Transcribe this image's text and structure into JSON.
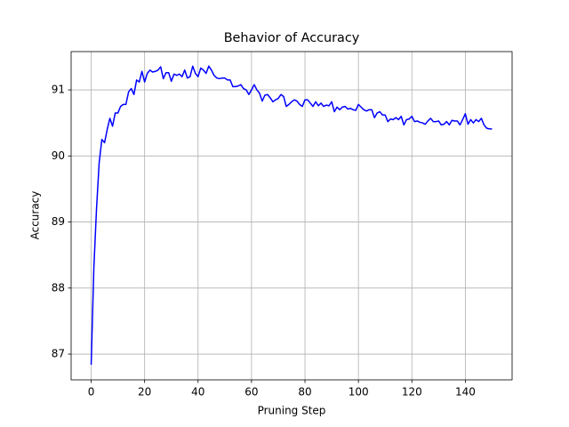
{
  "chart_data": {
    "type": "line",
    "title": "Behavior of Accuracy",
    "x_label": "Pruning Step",
    "y_label": "Accuracy",
    "color": "#0000ff",
    "grid": true,
    "xlim": [
      -7.5,
      157.5
    ],
    "ylim": [
      86.61,
      91.58
    ],
    "xticks": [
      0,
      20,
      40,
      60,
      80,
      100,
      120,
      140
    ],
    "yticks": [
      87,
      88,
      89,
      90,
      91
    ],
    "x": [
      0,
      1,
      2,
      3,
      4,
      5,
      6,
      7,
      8,
      9,
      10,
      11,
      12,
      13,
      14,
      15,
      16,
      17,
      18,
      19,
      20,
      21,
      22,
      23,
      24,
      25,
      26,
      27,
      28,
      29,
      30,
      31,
      32,
      33,
      34,
      35,
      36,
      37,
      38,
      39,
      40,
      41,
      42,
      43,
      44,
      45,
      46,
      47,
      48,
      49,
      50,
      51,
      52,
      53,
      54,
      55,
      56,
      57,
      58,
      59,
      60,
      61,
      62,
      63,
      64,
      65,
      66,
      67,
      68,
      69,
      70,
      71,
      72,
      73,
      74,
      75,
      76,
      77,
      78,
      79,
      80,
      81,
      82,
      83,
      84,
      85,
      86,
      87,
      88,
      89,
      90,
      91,
      92,
      93,
      94,
      95,
      96,
      97,
      98,
      99,
      100,
      101,
      102,
      103,
      104,
      105,
      106,
      107,
      108,
      109,
      110,
      111,
      112,
      113,
      114,
      115,
      116,
      117,
      118,
      119,
      120,
      121,
      122,
      123,
      124,
      125,
      126,
      127,
      128,
      129,
      130,
      131,
      132,
      133,
      134,
      135,
      136,
      137,
      138,
      139,
      140,
      141,
      142,
      143,
      144,
      145,
      146,
      147,
      148,
      149,
      150
    ],
    "values": [
      86.84,
      88.3,
      89.2,
      89.9,
      90.25,
      90.2,
      90.4,
      90.57,
      90.45,
      90.65,
      90.65,
      90.75,
      90.78,
      90.78,
      90.97,
      91.02,
      90.93,
      91.15,
      91.12,
      91.28,
      91.12,
      91.25,
      91.3,
      91.27,
      91.28,
      91.3,
      91.35,
      91.17,
      91.26,
      91.26,
      91.13,
      91.24,
      91.22,
      91.24,
      91.2,
      91.3,
      91.18,
      91.2,
      91.36,
      91.25,
      91.2,
      91.33,
      91.3,
      91.25,
      91.36,
      91.3,
      91.22,
      91.18,
      91.17,
      91.18,
      91.18,
      91.15,
      91.15,
      91.05,
      91.05,
      91.06,
      91.08,
      91.02,
      91.0,
      90.93,
      91.0,
      91.08,
      91.0,
      90.95,
      90.83,
      90.92,
      90.93,
      90.88,
      90.82,
      90.85,
      90.87,
      90.93,
      90.9,
      90.75,
      90.78,
      90.82,
      90.85,
      90.83,
      90.78,
      90.75,
      90.85,
      90.85,
      90.8,
      90.75,
      90.82,
      90.76,
      90.8,
      90.75,
      90.77,
      90.76,
      90.82,
      90.67,
      90.74,
      90.7,
      90.74,
      90.75,
      90.71,
      90.72,
      90.7,
      90.69,
      90.78,
      90.74,
      90.7,
      90.68,
      90.7,
      90.7,
      90.58,
      90.65,
      90.67,
      90.62,
      90.62,
      90.52,
      90.56,
      90.55,
      90.58,
      90.55,
      90.6,
      90.47,
      90.55,
      90.56,
      90.6,
      90.52,
      90.53,
      90.51,
      90.5,
      90.48,
      90.53,
      90.57,
      90.52,
      90.52,
      90.53,
      90.47,
      90.48,
      90.52,
      90.47,
      90.54,
      90.53,
      90.53,
      90.47,
      90.55,
      90.64,
      90.48,
      90.55,
      90.5,
      90.55,
      90.52,
      90.57,
      90.47,
      90.42,
      90.41,
      90.41
    ]
  }
}
